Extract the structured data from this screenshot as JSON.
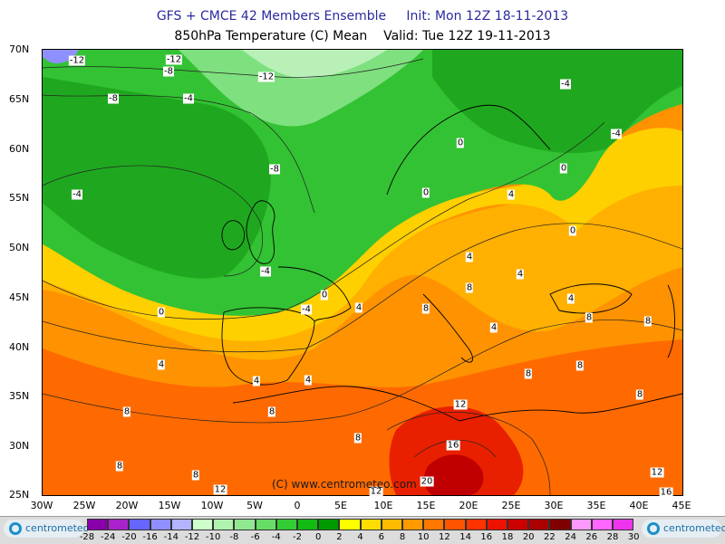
{
  "header": {
    "line1": "GFS + CMCE 42 Members Ensemble     Init: Mon 12Z 18-11-2013",
    "line2": "850hPa Temperature (C) Mean    Valid: Tue 12Z 19-11-2013"
  },
  "axes": {
    "lat_labels": [
      "70N",
      "65N",
      "60N",
      "55N",
      "50N",
      "45N",
      "40N",
      "35N",
      "30N",
      "25N"
    ],
    "lon_labels": [
      "30W",
      "25W",
      "20W",
      "15W",
      "10W",
      "5W",
      "0",
      "5E",
      "10E",
      "15E",
      "20E",
      "25E",
      "30E",
      "35E",
      "40E",
      "45E"
    ]
  },
  "contour_labels": [
    "-12",
    "-12",
    "-8",
    "-12",
    "-8",
    "-4",
    "-4",
    "-4",
    "-8",
    "-4",
    "-4",
    "0",
    "0",
    "0",
    "4",
    "0",
    "-4",
    "4",
    "4",
    "0",
    "4",
    "8",
    "4",
    "8",
    "0",
    "4",
    "8",
    "8",
    "4",
    "8",
    "8",
    "4",
    "8",
    "4",
    "8",
    "8",
    "8",
    "8",
    "12",
    "12",
    "12",
    "16",
    "20",
    "16",
    "12",
    "8"
  ],
  "copyright": "(C)  www.centrometeo.com",
  "logo_text": "centrometeo",
  "colorbar": {
    "ticks": [
      "-28",
      "-24",
      "-20",
      "-16",
      "-14",
      "-12",
      "-10",
      "-8",
      "-6",
      "-4",
      "-2",
      "0",
      "2",
      "4",
      "6",
      "8",
      "10",
      "12",
      "14",
      "16",
      "18",
      "20",
      "22",
      "24",
      "26",
      "28",
      "30"
    ],
    "colors": [
      "#8800aa",
      "#aa22cc",
      "#6666ff",
      "#8f8fff",
      "#b3b3ff",
      "#ccffcc",
      "#b0f2b0",
      "#90e890",
      "#66dd66",
      "#33cc33",
      "#11bb11",
      "#009900",
      "#ffff00",
      "#ffdd00",
      "#ffbb00",
      "#ff9900",
      "#ff7700",
      "#ff5500",
      "#ff3300",
      "#ee1100",
      "#cc0000",
      "#aa0000",
      "#800000",
      "#ff99ff",
      "#ff66ff",
      "#ee33ee"
    ]
  },
  "palette": {
    "deep_green": "#1fa81f",
    "green": "#33c233",
    "light_green": "#7fe07f",
    "pale_green": "#b8f0b8",
    "yellow": "#ffd000",
    "orange_light": "#ffb000",
    "orange": "#ff9200",
    "red_orange": "#ff6a00",
    "red": "#e82000"
  }
}
